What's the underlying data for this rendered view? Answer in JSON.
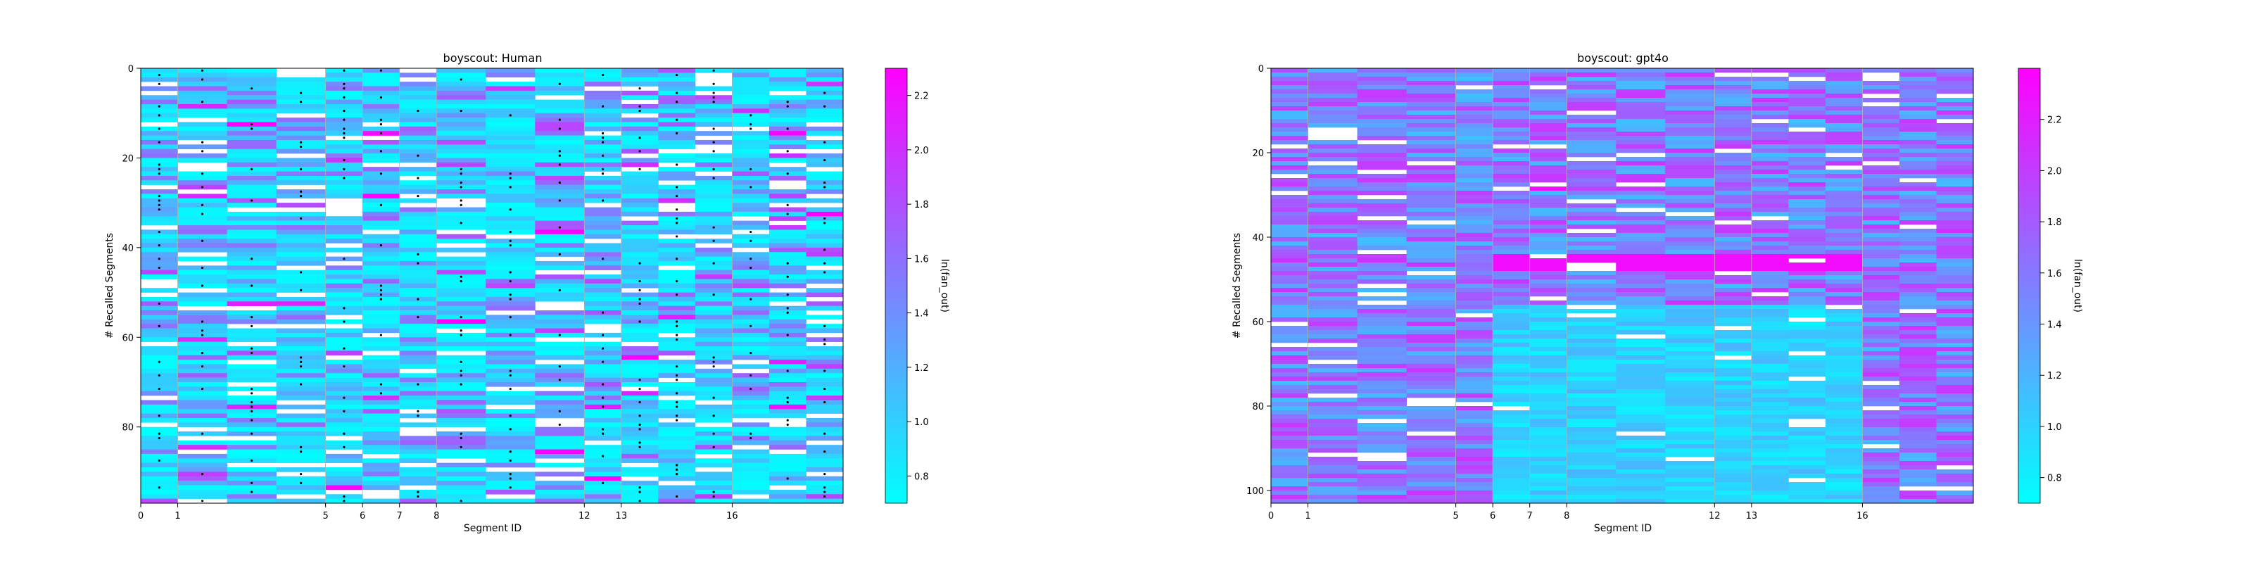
{
  "colormap": [
    "#00ffff",
    "#ff00ff"
  ],
  "chart_data": [
    {
      "type": "heatmap",
      "title": "boyscout: Human",
      "xlabel": "Segment ID",
      "ylabel": "# Recalled Segments",
      "x_ticks": [
        0,
        1,
        5,
        6,
        7,
        8,
        12,
        13,
        16
      ],
      "y_ticks": [
        0,
        20,
        40,
        60,
        80
      ],
      "segment_boundaries": [
        0,
        1,
        5,
        6,
        7,
        8,
        12,
        13,
        16,
        19
      ],
      "xlim": [
        0,
        19
      ],
      "ylim": [
        0,
        97
      ],
      "value_range": [
        0.7,
        2.3
      ],
      "colorbar_label": "ln(fan_out)",
      "colorbar_ticks": [
        0.8,
        1.0,
        1.2,
        1.4,
        1.6,
        1.8,
        2.0,
        2.2
      ],
      "marker_density": 0.22
    },
    {
      "type": "heatmap",
      "title": "boyscout: gpt4o",
      "xlabel": "Segment ID",
      "ylabel": "# Recalled Segments",
      "x_ticks": [
        0,
        1,
        5,
        6,
        7,
        8,
        12,
        13,
        16
      ],
      "y_ticks": [
        0,
        20,
        40,
        60,
        80,
        100
      ],
      "segment_boundaries": [
        0,
        1,
        5,
        6,
        7,
        8,
        12,
        13,
        16,
        19
      ],
      "xlim": [
        0,
        19
      ],
      "ylim": [
        0,
        103
      ],
      "value_range": [
        0.7,
        2.4
      ],
      "colorbar_label": "ln(fan_out)",
      "colorbar_ticks": [
        0.8,
        1.0,
        1.2,
        1.4,
        1.6,
        1.8,
        2.0,
        2.2
      ],
      "marker_density": 0
    }
  ]
}
